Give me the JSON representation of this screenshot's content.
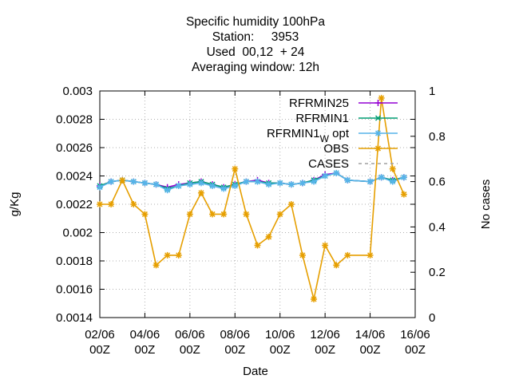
{
  "chart_data": {
    "type": "line",
    "title_lines": [
      "Specific humidity 100hPa",
      "Station:     3953",
      "Used  00,12  + 24",
      "Averaging window: 12h"
    ],
    "xlabel": "Date",
    "ylabel": "g/Kg",
    "y2label": "No cases",
    "grid": true,
    "legend_placement": "top-right",
    "x_ticks": [
      {
        "d": 2,
        "line1": "02/06",
        "line2": "00Z"
      },
      {
        "d": 4,
        "line1": "04/06",
        "line2": "00Z"
      },
      {
        "d": 6,
        "line1": "06/06",
        "line2": "00Z"
      },
      {
        "d": 8,
        "line1": "08/06",
        "line2": "00Z"
      },
      {
        "d": 10,
        "line1": "10/06",
        "line2": "00Z"
      },
      {
        "d": 12,
        "line1": "12/06",
        "line2": "00Z"
      },
      {
        "d": 14,
        "line1": "14/06",
        "line2": "00Z"
      },
      {
        "d": 16,
        "line1": "16/06",
        "line2": "00Z"
      }
    ],
    "xlim": [
      2,
      16
    ],
    "ylim": [
      0.0014,
      0.003
    ],
    "y_ticks": [
      "0.0014",
      "0.0016",
      "0.0018",
      "0.002",
      "0.0022",
      "0.0024",
      "0.0026",
      "0.0028",
      "0.003"
    ],
    "y2lim": [
      0,
      1
    ],
    "y2_ticks": [
      "0",
      "0.2",
      "0.4",
      "0.6",
      "0.8",
      "1"
    ],
    "series": [
      {
        "name": "RFRMIN25",
        "color": "#9400d3",
        "marker": "plus",
        "x": [
          2,
          2.5,
          3,
          3.5,
          4,
          4.5,
          5,
          5.5,
          6,
          6.5,
          7,
          7.5,
          8,
          8.5,
          9,
          9.5,
          10,
          10.5,
          11,
          11.5,
          12,
          12.5,
          13,
          14,
          14.5,
          15,
          15.5
        ],
        "values": [
          0.00233,
          0.00236,
          0.00237,
          0.00236,
          0.00235,
          0.00234,
          0.00232,
          0.00234,
          0.00235,
          0.00236,
          0.00234,
          0.00232,
          0.00234,
          0.00236,
          0.00237,
          0.00235,
          0.00235,
          0.00234,
          0.00235,
          0.00237,
          0.00241,
          0.00242,
          0.00237,
          0.00236,
          0.00239,
          0.00237,
          0.00239
        ]
      },
      {
        "name": "RFRMIN1",
        "color": "#009e73",
        "marker": "cross",
        "x": [
          2,
          2.5,
          3,
          3.5,
          4,
          4.5,
          5,
          5.5,
          6,
          6.5,
          7,
          7.5,
          8,
          8.5,
          9,
          9.5,
          10,
          10.5,
          11,
          11.5,
          12,
          12.5,
          13,
          14,
          14.5,
          15,
          15.5
        ],
        "values": [
          0.00233,
          0.00236,
          0.00237,
          0.00236,
          0.00235,
          0.00234,
          0.00231,
          0.00233,
          0.00235,
          0.00236,
          0.00234,
          0.00232,
          0.00234,
          0.00236,
          0.00236,
          0.00235,
          0.00235,
          0.00234,
          0.00235,
          0.00237,
          0.0024,
          0.00242,
          0.00237,
          0.00236,
          0.00239,
          0.00237,
          0.00239
        ]
      },
      {
        "name": "RFRMIN1",
        "name_subscript": "W",
        "name_suffix": " opt",
        "color": "#56b4e9",
        "marker": "star",
        "x": [
          2,
          2.5,
          3,
          3.5,
          4,
          4.5,
          5,
          5.5,
          6,
          6.5,
          7,
          7.5,
          8,
          8.5,
          9,
          9.5,
          10,
          10.5,
          11,
          11.5,
          12,
          12.5,
          13,
          14,
          14.5,
          15,
          15.5
        ],
        "values": [
          0.00232,
          0.00236,
          0.00237,
          0.00236,
          0.00235,
          0.00234,
          0.0023,
          0.00233,
          0.00234,
          0.00235,
          0.00233,
          0.00231,
          0.00233,
          0.00236,
          0.00236,
          0.00234,
          0.00235,
          0.00234,
          0.00235,
          0.00236,
          0.0024,
          0.00242,
          0.00237,
          0.00236,
          0.00239,
          0.00236,
          0.00239
        ]
      },
      {
        "name": "OBS",
        "color": "#e69f00",
        "marker": "star",
        "x": [
          2,
          2.5,
          3,
          3.5,
          4,
          4.5,
          5,
          5.5,
          6,
          6.5,
          7,
          7.5,
          8,
          8.5,
          9,
          9.5,
          10,
          10.5,
          11,
          11.5,
          12,
          12.5,
          13,
          14,
          14.5,
          15,
          15.5
        ],
        "values": [
          0.0022,
          0.0022,
          0.00237,
          0.0022,
          0.00213,
          0.00177,
          0.00184,
          0.00184,
          0.00213,
          0.00228,
          0.00213,
          0.00213,
          0.00245,
          0.00213,
          0.00191,
          0.00197,
          0.00213,
          0.0022,
          0.00184,
          0.00153,
          0.00191,
          0.00177,
          0.00184,
          0.00184,
          0.00295,
          0.00245,
          0.00227
        ]
      },
      {
        "name": "CASES",
        "color": "#a0a0a0",
        "dash": "4,4",
        "marker": "none",
        "x": [],
        "values": []
      }
    ]
  }
}
